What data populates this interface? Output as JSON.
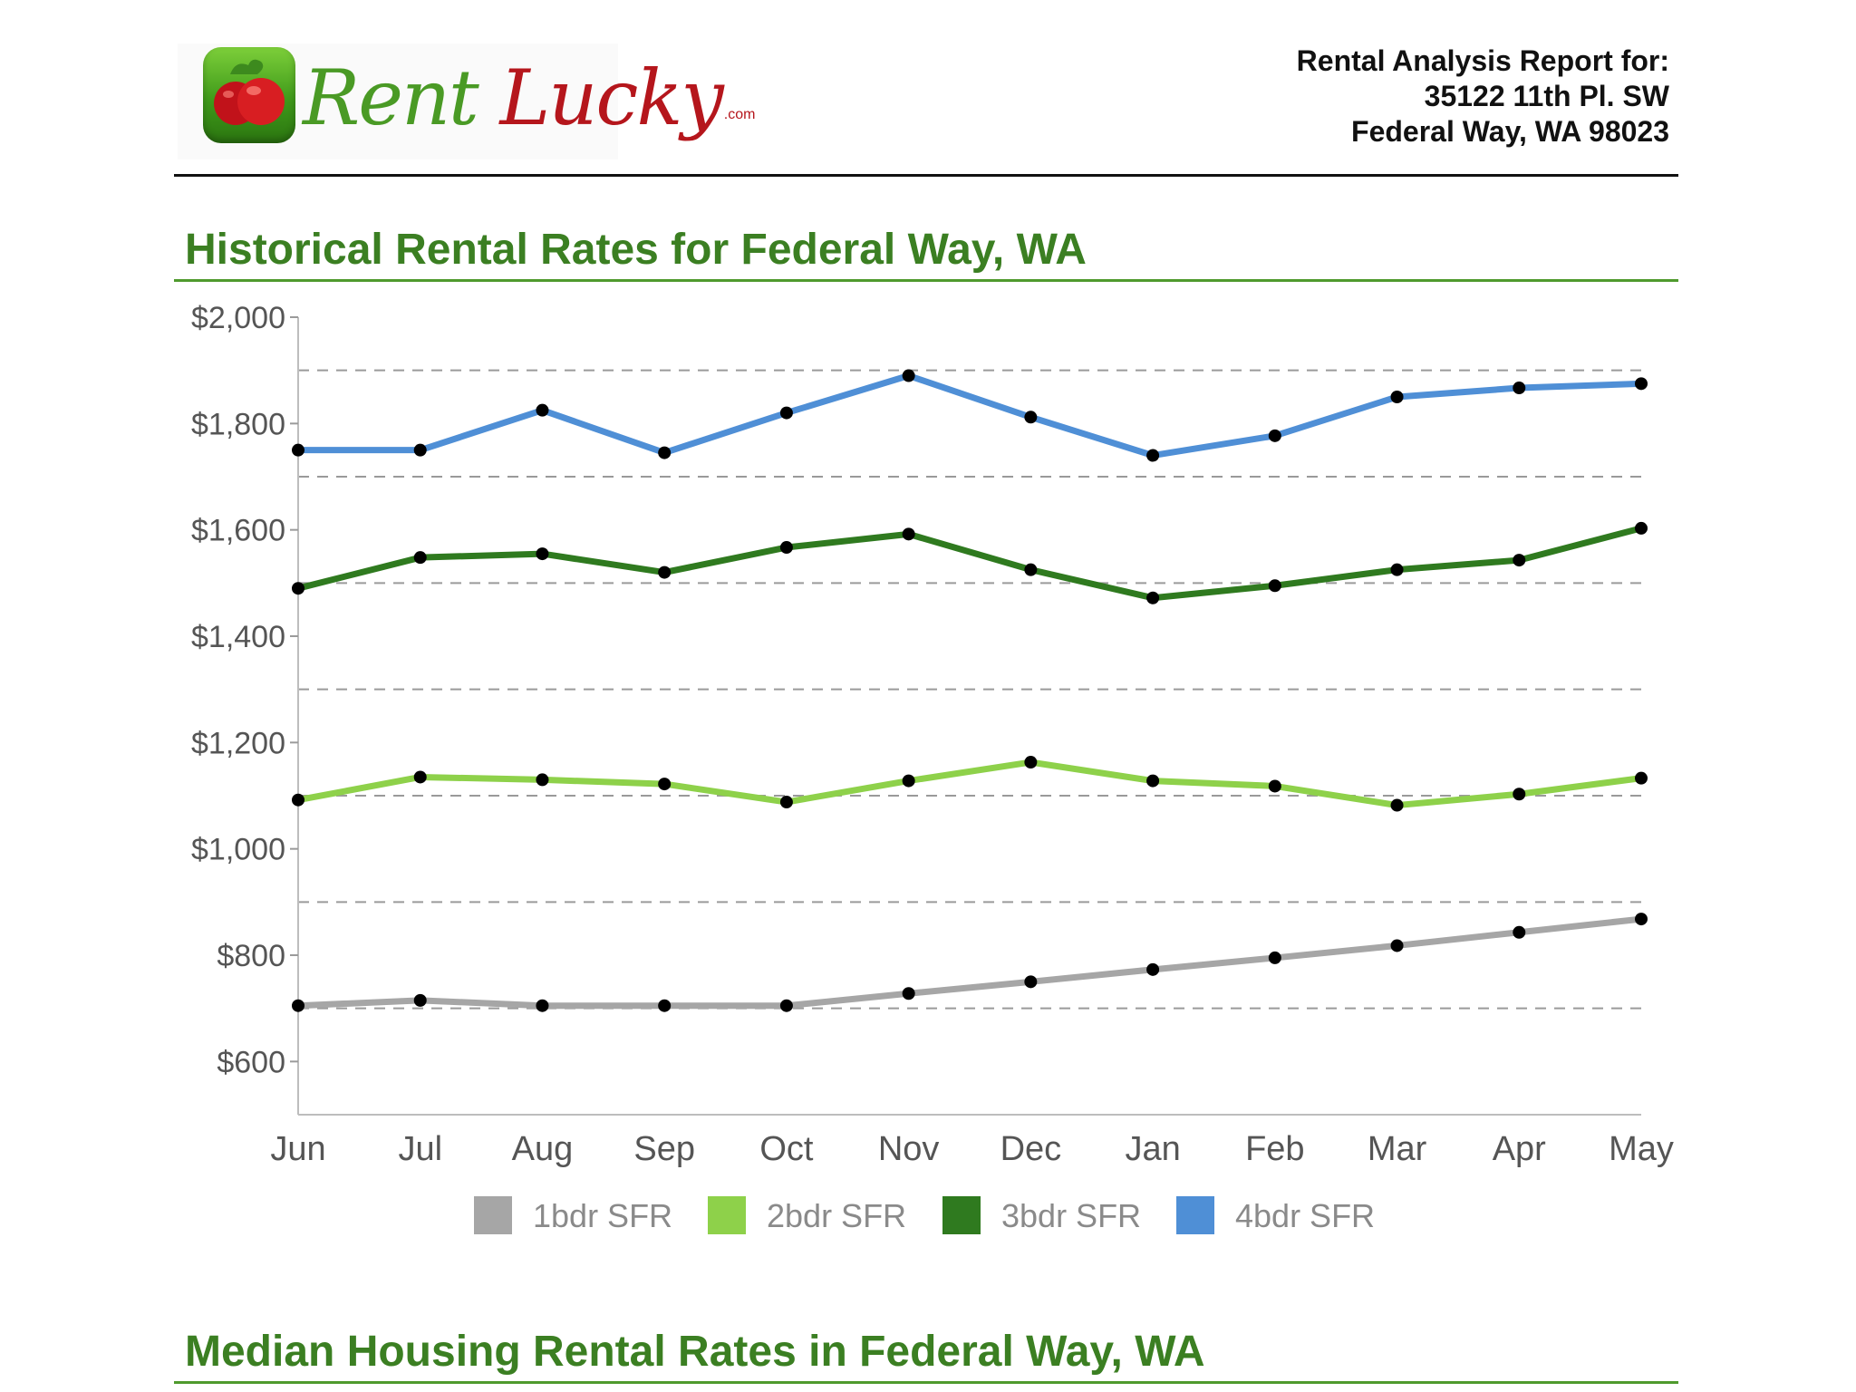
{
  "logo": {
    "text_rent": "Rent",
    "text_lucky": "Lucky",
    "text_com": ".com",
    "icon": "tomato-icon",
    "colors": {
      "green": "#4a9a25",
      "red": "#b5161c"
    }
  },
  "report": {
    "line1": "Rental Analysis Report for:",
    "line2": "35122 11th Pl. SW",
    "line3": "Federal Way, WA 98023"
  },
  "sections": {
    "historical_title": "Historical Rental Rates for Federal Way, WA",
    "median_title": "Median Housing Rental Rates in Federal Way, WA"
  },
  "chart_data": {
    "type": "line",
    "title": "",
    "xlabel": "",
    "ylabel": "",
    "categories": [
      "Jun",
      "Jul",
      "Aug",
      "Sep",
      "Oct",
      "Nov",
      "Dec",
      "Jan",
      "Feb",
      "Mar",
      "Apr",
      "May"
    ],
    "ylim": [
      500,
      2000
    ],
    "yticks": [
      600,
      800,
      1000,
      1200,
      1400,
      1600,
      1800,
      2000
    ],
    "ytick_labels": [
      "$600",
      "$800",
      "$1,000",
      "$1,200",
      "$1,400",
      "$1,600",
      "$1,800",
      "$2,000"
    ],
    "gridlines": [
      700,
      900,
      1100,
      1300,
      1500,
      1700,
      1900
    ],
    "grid": "dashed",
    "legend_position": "bottom",
    "series": [
      {
        "name": "1bdr SFR",
        "color": "#a6a6a6",
        "values": [
          705,
          715,
          705,
          705,
          705,
          728,
          750,
          773,
          795,
          818,
          843,
          868
        ]
      },
      {
        "name": "2bdr SFR",
        "color": "#8ed14a",
        "values": [
          1092,
          1135,
          1130,
          1122,
          1088,
          1128,
          1163,
          1128,
          1118,
          1082,
          1103,
          1133
        ]
      },
      {
        "name": "3bdr SFR",
        "color": "#2f7a1f",
        "values": [
          1490,
          1548,
          1555,
          1520,
          1567,
          1592,
          1525,
          1472,
          1495,
          1525,
          1543,
          1603
        ]
      },
      {
        "name": "4bdr SFR",
        "color": "#4f8fd6",
        "values": [
          1750,
          1750,
          1825,
          1745,
          1820,
          1890,
          1812,
          1740,
          1777,
          1850,
          1867,
          1875
        ]
      }
    ]
  }
}
